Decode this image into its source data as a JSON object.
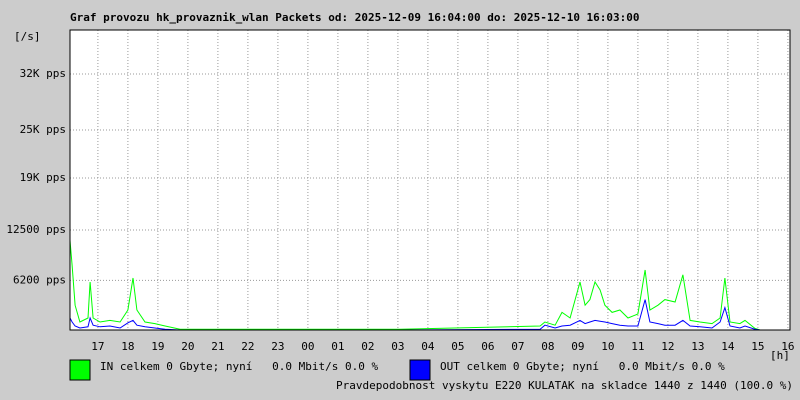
{
  "chart_data": {
    "type": "line",
    "title": "Graf provozu hk_provaznik_wlan Packets od: 2025-12-09 16:04:00 do: 2025-12-10 16:03:00",
    "y_label": "[/s]",
    "x_label": "[h]",
    "footer": "Pravdepodobnost vyskytu E220 KULATAK na skladce 1440 z 1440 (100.0 %)",
    "footer_color": "#ff0000",
    "grid": true,
    "xlim": [
      16.07,
      40.07
    ],
    "xticks": [
      {
        "value": 17,
        "label": "17"
      },
      {
        "value": 18,
        "label": "18"
      },
      {
        "value": 19,
        "label": "19"
      },
      {
        "value": 20,
        "label": "20"
      },
      {
        "value": 21,
        "label": "21"
      },
      {
        "value": 22,
        "label": "22"
      },
      {
        "value": 23,
        "label": "23"
      },
      {
        "value": 24,
        "label": "00"
      },
      {
        "value": 25,
        "label": "01"
      },
      {
        "value": 26,
        "label": "02"
      },
      {
        "value": 27,
        "label": "03"
      },
      {
        "value": 28,
        "label": "04"
      },
      {
        "value": 29,
        "label": "05"
      },
      {
        "value": 30,
        "label": "06"
      },
      {
        "value": 31,
        "label": "07"
      },
      {
        "value": 32,
        "label": "08"
      },
      {
        "value": 33,
        "label": "09"
      },
      {
        "value": 34,
        "label": "10"
      },
      {
        "value": 35,
        "label": "11"
      },
      {
        "value": 36,
        "label": "12"
      },
      {
        "value": 37,
        "label": "13"
      },
      {
        "value": 38,
        "label": "14"
      },
      {
        "value": 39,
        "label": "15"
      },
      {
        "value": 40,
        "label": "16"
      }
    ],
    "ylim": [
      0,
      37500
    ],
    "yticks": [
      {
        "value": 6200,
        "label": "6200 pps"
      },
      {
        "value": 12500,
        "label": "12500 pps"
      },
      {
        "value": 19000,
        "label": "19K pps"
      },
      {
        "value": 25000,
        "label": "25K pps"
      },
      {
        "value": 32000,
        "label": "32K pps"
      }
    ],
    "x": [
      16.07,
      16.14,
      16.24,
      16.4,
      16.67,
      16.74,
      16.84,
      17.07,
      17.4,
      17.74,
      18.0,
      18.17,
      18.3,
      18.57,
      18.9,
      19.24,
      19.74,
      22.07,
      27.07,
      31.74,
      31.9,
      32.24,
      32.47,
      32.74,
      33.07,
      33.24,
      33.4,
      33.57,
      33.74,
      33.9,
      34.14,
      34.4,
      34.67,
      35.0,
      35.24,
      35.4,
      35.67,
      35.9,
      36.24,
      36.5,
      36.74,
      37.07,
      37.47,
      37.74,
      37.9,
      38.07,
      38.4,
      38.57,
      38.9,
      39.07
    ],
    "series": [
      {
        "name": "IN celkem 0 Gbyte; nyní   0.0 Mbit/s 0.0 %",
        "color": "#00ff00",
        "values": [
          11200,
          8100,
          3100,
          1000,
          1500,
          6000,
          1500,
          1000,
          1200,
          1000,
          2500,
          6500,
          2500,
          1000,
          800,
          500,
          100,
          100,
          100,
          500,
          1000,
          600,
          2200,
          1500,
          6000,
          3100,
          3800,
          6000,
          5000,
          3100,
          2200,
          2500,
          1500,
          2000,
          7500,
          2500,
          3100,
          3800,
          3500,
          6900,
          1200,
          1000,
          800,
          1500,
          6500,
          1000,
          800,
          1200,
          200,
          0
        ]
      },
      {
        "name": "OUT celkem 0 Gbyte; nyní   0.0 Mbit/s 0.0 %",
        "color": "#0000ff",
        "values": [
          1500,
          1000,
          500,
          250,
          400,
          1500,
          600,
          400,
          500,
          250,
          900,
          1200,
          600,
          400,
          250,
          100,
          0,
          0,
          0,
          100,
          600,
          250,
          500,
          600,
          1200,
          800,
          1000,
          1200,
          1100,
          1000,
          800,
          600,
          500,
          500,
          3800,
          1000,
          800,
          600,
          600,
          1200,
          500,
          400,
          250,
          1000,
          2800,
          500,
          250,
          500,
          100,
          0
        ]
      }
    ]
  }
}
